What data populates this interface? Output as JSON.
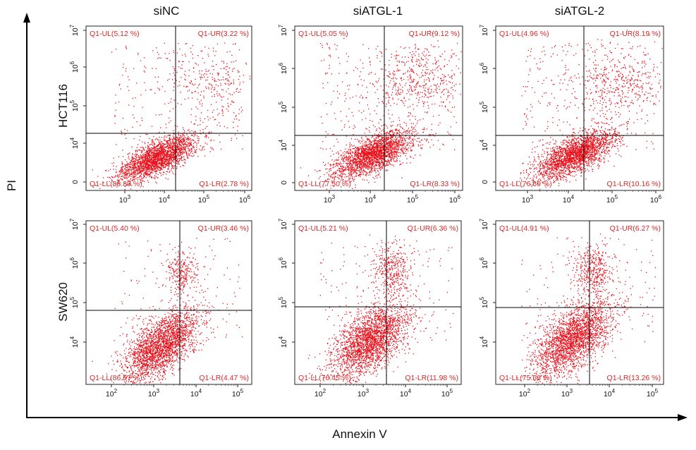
{
  "figure": {
    "x_axis_label": "Annexin V",
    "y_axis_label": "PI",
    "column_titles": [
      "siNC",
      "siATGL-1",
      "siATGL-2"
    ],
    "row_titles": [
      "HCT116",
      "SW620"
    ],
    "point_color": "#e8101a",
    "text_color": "#d42a2a"
  },
  "chart_data": [
    {
      "type": "scatter",
      "row": "HCT116",
      "column": "siNC",
      "x_ticks": [
        "10^3",
        "10^4",
        "10^5",
        "10^6"
      ],
      "y_ticks": [
        "0",
        "10^4",
        "10^5",
        "10^6",
        "10^7"
      ],
      "x_range_log10": [
        2.4,
        6.1
      ],
      "gate": {
        "x": "2.2x10^4",
        "y": "2x10^4"
      },
      "quadrants": [
        {
          "label": "Q1-UL",
          "percent": "5.12",
          "text": "Q1-UL(5.12 %)"
        },
        {
          "label": "Q1-UR",
          "percent": "3.22",
          "text": "Q1-UR(3.22 %)"
        },
        {
          "label": "Q1-LL",
          "percent": "88.89",
          "text": "Q1-LL(88.89 %)"
        },
        {
          "label": "Q1-LR",
          "percent": "2.78",
          "text": "Q1-LR(2.78 %)"
        }
      ]
    },
    {
      "type": "scatter",
      "row": "HCT116",
      "column": "siATGL-1",
      "x_ticks": [
        "10^3",
        "10^4",
        "10^5",
        "10^6"
      ],
      "y_ticks": [
        "0",
        "10^4",
        "10^5",
        "10^6",
        "10^7"
      ],
      "x_range_log10": [
        2.4,
        6.1
      ],
      "gate": {
        "x": "2.2x10^4",
        "y": "2x10^4"
      },
      "quadrants": [
        {
          "label": "Q1-UL",
          "percent": "5.05",
          "text": "Q1-UL(5.05 %)"
        },
        {
          "label": "Q1-UR",
          "percent": "9.12",
          "text": "Q1-UR(9.12 %)"
        },
        {
          "label": "Q1-LL",
          "percent": "77.50",
          "text": "Q1-LL(77.50 %)"
        },
        {
          "label": "Q1-LR",
          "percent": "8.33",
          "text": "Q1-LR(8.33 %)"
        }
      ]
    },
    {
      "type": "scatter",
      "row": "HCT116",
      "column": "siATGL-2",
      "x_ticks": [
        "10^3",
        "10^4",
        "10^5",
        "10^6"
      ],
      "y_ticks": [
        "0",
        "10^4",
        "10^5",
        "10^6",
        "10^7"
      ],
      "x_range_log10": [
        2.4,
        6.1
      ],
      "gate": {
        "x": "2.2x10^4",
        "y": "2x10^4"
      },
      "quadrants": [
        {
          "label": "Q1-UL",
          "percent": "4.96",
          "text": "Q1-UL(4.96 %)"
        },
        {
          "label": "Q1-UR",
          "percent": "8.19",
          "text": "Q1-UR(8.19 %)"
        },
        {
          "label": "Q1-LL",
          "percent": "76.69",
          "text": "Q1-LL(76.69 %)"
        },
        {
          "label": "Q1-LR",
          "percent": "10.16",
          "text": "Q1-LR(10.16 %)"
        }
      ]
    },
    {
      "type": "scatter",
      "row": "SW620",
      "column": "siNC",
      "x_ticks": [
        "10^2",
        "10^3",
        "10^4",
        "10^5"
      ],
      "y_ticks": [
        "10^4",
        "10^5",
        "10^6",
        "10^7"
      ],
      "x_range_log10": [
        1.5,
        5.3
      ],
      "gate": {
        "x": "4x10^3",
        "y": "8x10^4"
      },
      "quadrants": [
        {
          "label": "Q1-UL",
          "percent": "5.40",
          "text": "Q1-UL(5.40 %)"
        },
        {
          "label": "Q1-UR",
          "percent": "3.46",
          "text": "Q1-UR(3.46 %)"
        },
        {
          "label": "Q1-LL",
          "percent": "86.67",
          "text": "Q1-LL(86.67 %)"
        },
        {
          "label": "Q1-LR",
          "percent": "4.47",
          "text": "Q1-LR(4.47 %)"
        }
      ]
    },
    {
      "type": "scatter",
      "row": "SW620",
      "column": "siATGL-1",
      "x_ticks": [
        "10^2",
        "10^3",
        "10^4",
        "10^5"
      ],
      "y_ticks": [
        "10^4",
        "10^5",
        "10^6",
        "10^7"
      ],
      "x_range_log10": [
        1.5,
        5.3
      ],
      "gate": {
        "x": "4x10^3",
        "y": "8x10^4"
      },
      "quadrants": [
        {
          "label": "Q1-UL",
          "percent": "5.21",
          "text": "Q1-UL(5.21 %)"
        },
        {
          "label": "Q1-UR",
          "percent": "6.36",
          "text": "Q1-UR(6.36 %)"
        },
        {
          "label": "Q1-LL",
          "percent": "76.45",
          "text": "Q1-LL(76.45 %)"
        },
        {
          "label": "Q1-LR",
          "percent": "11.98",
          "text": "Q1-LR(11.98 %)"
        }
      ]
    },
    {
      "type": "scatter",
      "row": "SW620",
      "column": "siATGL-2",
      "x_ticks": [
        "10^2",
        "10^3",
        "10^4",
        "10^5"
      ],
      "y_ticks": [
        "10^4",
        "10^5",
        "10^6",
        "10^7"
      ],
      "x_range_log10": [
        1.5,
        5.3
      ],
      "gate": {
        "x": "4x10^3",
        "y": "8x10^4"
      },
      "quadrants": [
        {
          "label": "Q1-UL",
          "percent": "4.91",
          "text": "Q1-UL(4.91 %)"
        },
        {
          "label": "Q1-UR",
          "percent": "6.27",
          "text": "Q1-UR(6.27 %)"
        },
        {
          "label": "Q1-LL",
          "percent": "75.56",
          "text": "Q1-LL(75.56 %)"
        },
        {
          "label": "Q1-LR",
          "percent": "13.26",
          "text": "Q1-LR(13.26 %)"
        }
      ]
    }
  ]
}
